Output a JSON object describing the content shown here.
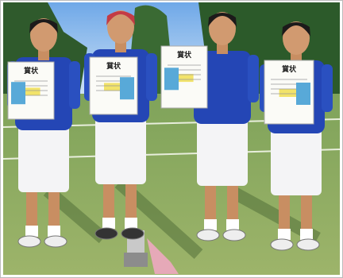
{
  "certificates": [
    {
      "title": "賞状"
    },
    {
      "title": "賞状"
    },
    {
      "title": "賞状"
    },
    {
      "title": "賞状"
    }
  ]
}
